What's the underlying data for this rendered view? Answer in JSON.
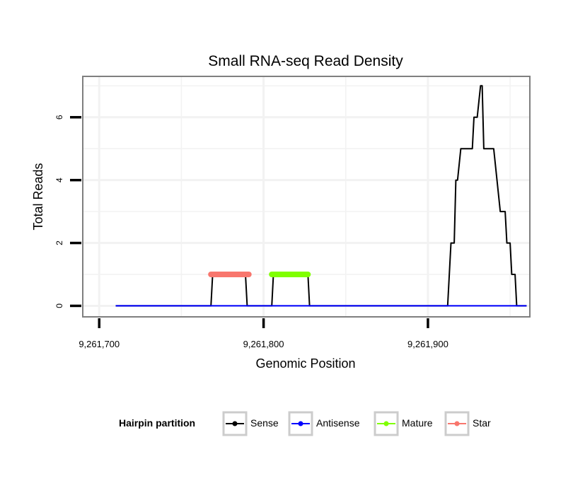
{
  "chart_data": {
    "type": "line",
    "title": "Small RNA-seq Read Density",
    "xlabel": "Genomic Position",
    "ylabel": "Total Reads",
    "xlim": [
      9261690,
      9261962
    ],
    "ylim": [
      -0.35,
      7.3
    ],
    "x_ticks": [
      9261700,
      9261800,
      9261900
    ],
    "x_tick_labels": [
      "9,261,700",
      "9,261,800",
      "9,261,900"
    ],
    "y_ticks": [
      0,
      2,
      4,
      6
    ],
    "y_tick_labels": [
      "0",
      "2",
      "4",
      "6"
    ],
    "grid": true,
    "legend": {
      "position": "bottom",
      "title": "Hairpin partition",
      "entries": [
        {
          "label": "Sense",
          "color": "#000000"
        },
        {
          "label": "Antisense",
          "color": "#0000ff"
        },
        {
          "label": "Mature",
          "color": "#80ff00"
        },
        {
          "label": "Star",
          "color": "#f8766d"
        }
      ]
    },
    "series": [
      {
        "name": "Sense",
        "color": "#000000",
        "stroke_weight": "normal",
        "x": [
          9261710,
          9261768,
          9261769,
          9261789,
          9261790,
          9261805,
          9261806,
          9261827,
          9261828,
          9261912,
          9261914,
          9261916,
          9261917,
          9261918,
          9261920,
          9261922,
          9261927,
          9261928,
          9261930,
          9261932,
          9261933,
          9261934,
          9261937,
          9261938,
          9261940,
          9261944,
          9261945,
          9261947,
          9261948,
          9261950,
          9261951,
          9261953,
          9261954,
          9261956,
          9261960
        ],
        "values": [
          0,
          0,
          1,
          1,
          0,
          0,
          1,
          1,
          0,
          0,
          2,
          2,
          4,
          4,
          5,
          5,
          5,
          6,
          6,
          7,
          7,
          5,
          5,
          5,
          5,
          3,
          3,
          3,
          2,
          2,
          1,
          1,
          0,
          0,
          0
        ]
      },
      {
        "name": "Antisense",
        "color": "#0000ff",
        "stroke_weight": "normal",
        "x": [
          9261710,
          9261960
        ],
        "values": [
          0,
          0
        ]
      },
      {
        "name": "Mature",
        "color": "#80ff00",
        "stroke_weight": "thick",
        "x": [
          9261805,
          9261827
        ],
        "values": [
          1,
          1
        ]
      },
      {
        "name": "Star",
        "color": "#f8766d",
        "stroke_weight": "thick",
        "x": [
          9261768,
          9261791
        ],
        "values": [
          1,
          1
        ]
      }
    ]
  }
}
